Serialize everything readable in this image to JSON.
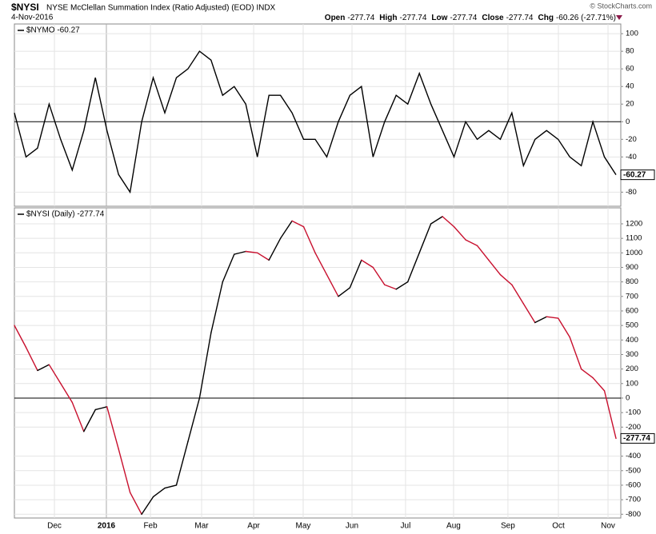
{
  "header": {
    "symbol": "$NYSI",
    "description": "NYSE McClellan Summation Index (Ratio Adjusted) (EOD) INDX",
    "date": "4-Nov-2016",
    "quote": [
      {
        "label": "Open",
        "value": -277.74
      },
      {
        "label": "High",
        "value": -277.74
      },
      {
        "label": "Low",
        "value": -277.74
      },
      {
        "label": "Close",
        "value": -277.74
      },
      {
        "label": "Chg",
        "value": "-60.26 (-27.71%)"
      }
    ],
    "copyright": "© StockCharts.com"
  },
  "chart_data": [
    {
      "type": "line",
      "series": [
        {
          "name": "$NYMO -60.27",
          "color": "#000000",
          "values": [
            10,
            -40,
            -30,
            20,
            -20,
            -55,
            -10,
            50,
            -10,
            -60,
            -80,
            0,
            50,
            10,
            50,
            60,
            80,
            70,
            30,
            40,
            20,
            -40,
            30,
            30,
            10,
            -20,
            -20,
            -40,
            0,
            30,
            40,
            -40,
            0,
            30,
            20,
            55,
            20,
            -10,
            -40,
            0,
            -20,
            -10,
            -20,
            10,
            -50,
            -20,
            -10,
            -20,
            -40,
            -50,
            0,
            -40,
            -60.27
          ]
        }
      ],
      "ylim": [
        -96,
        111
      ],
      "yticks": [
        100,
        80,
        60,
        40,
        20,
        0,
        -20,
        -40,
        -80
      ],
      "grid": true
    },
    {
      "type": "line",
      "series": [
        {
          "name": "$NYSI (Daily) -277.74",
          "color": "#000000",
          "falling_color": "#c8102e",
          "values": [
            500,
            350,
            190,
            230,
            100,
            -30,
            -230,
            -80,
            -60,
            -350,
            -650,
            -800,
            -680,
            -620,
            -600,
            -300,
            0,
            450,
            800,
            990,
            1010,
            1000,
            950,
            1100,
            1220,
            1180,
            1000,
            850,
            700,
            760,
            950,
            900,
            780,
            750,
            800,
            1000,
            1200,
            1250,
            1180,
            1090,
            1050,
            950,
            850,
            780,
            650,
            520,
            560,
            550,
            420,
            200,
            140,
            50,
            -277.74
          ]
        }
      ],
      "ylim": [
        -826,
        1310
      ],
      "yticks": [
        1200,
        1100,
        1000,
        900,
        800,
        700,
        600,
        500,
        400,
        300,
        200,
        100,
        0,
        -100,
        -200,
        -400,
        -500,
        -600,
        -700,
        -800
      ],
      "grid": true,
      "xticks": [
        {
          "value": 3.46,
          "label": "Dec"
        },
        {
          "value": 7.95,
          "label": "2016"
        },
        {
          "value": 11.76,
          "label": "Feb"
        },
        {
          "value": 16.18,
          "label": "Mar"
        },
        {
          "value": 20.68,
          "label": "Apr"
        },
        {
          "value": 24.96,
          "label": "May"
        },
        {
          "value": 29.18,
          "label": "Jun"
        },
        {
          "value": 33.81,
          "label": "Jul"
        },
        {
          "value": 37.96,
          "label": "Aug"
        },
        {
          "value": 42.66,
          "label": "Sep"
        },
        {
          "value": 47.02,
          "label": "Oct"
        },
        {
          "value": 51.31,
          "label": "Nov"
        }
      ]
    }
  ]
}
